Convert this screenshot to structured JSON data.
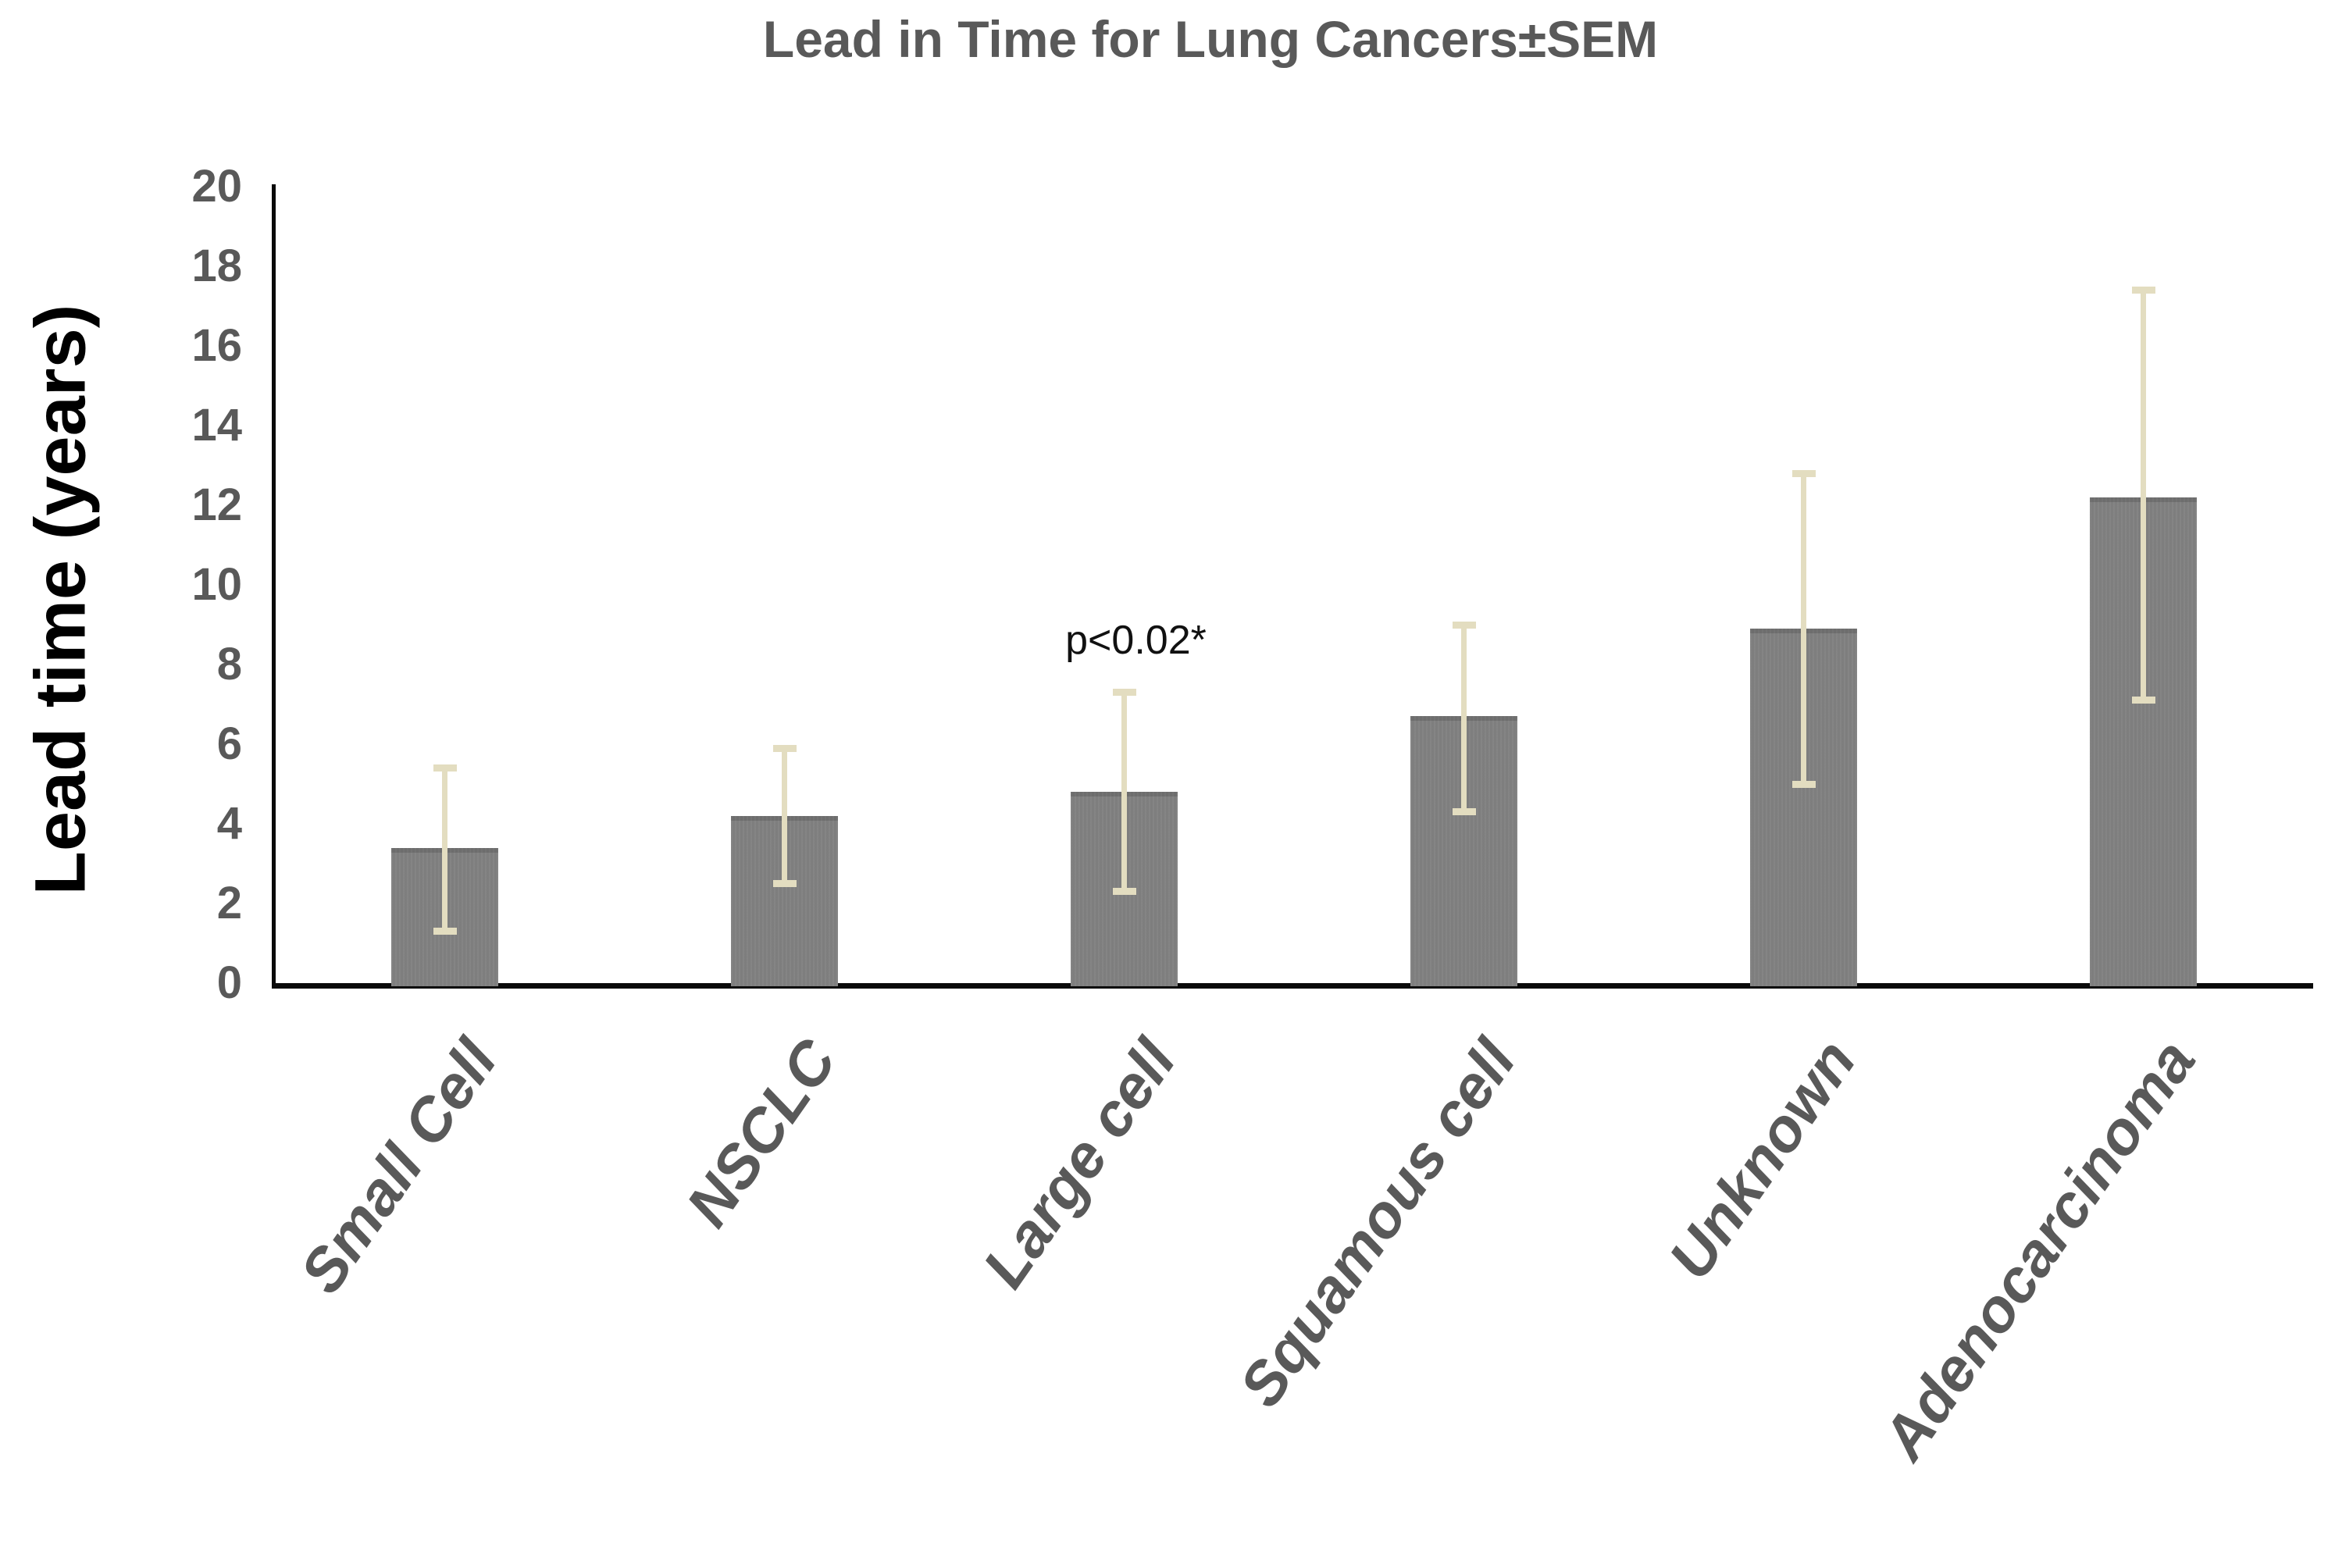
{
  "chart_data": {
    "type": "bar",
    "title": "Lead in Time for Lung Cancers±SEM",
    "ylabel": "Lead time (years)",
    "xlabel": "",
    "ylim": [
      0,
      20
    ],
    "ytick_step": 2,
    "yticks": [
      0,
      2,
      4,
      6,
      8,
      10,
      12,
      14,
      16,
      18,
      20
    ],
    "grid": false,
    "legend": false,
    "categories": [
      "Small Cell",
      "NSCLC",
      "Large cell",
      "Squamous cell",
      "Unknown",
      "Adenocarcinoma"
    ],
    "series": [
      {
        "name": "Lead time (years)",
        "values": [
          3.4,
          4.2,
          4.8,
          6.7,
          8.9,
          12.2
        ]
      }
    ],
    "error_bars": {
      "type": "SEM",
      "low": [
        1.3,
        2.5,
        2.3,
        4.3,
        5.0,
        7.1
      ],
      "high": [
        5.4,
        5.9,
        7.3,
        9.0,
        12.8,
        17.4
      ]
    },
    "annotation": {
      "text": "p<0.02*",
      "category": "Large cell",
      "y": 8.6
    },
    "colors": {
      "bar": "#7e7e7e",
      "bar_top_edge": "#6a6a6a",
      "error_bar": "#e3ddc0",
      "axis": "#0a0a0a",
      "tick_label": "#595959",
      "title": "#595959",
      "category_label": "#595959",
      "annotation": "#111111",
      "ylabel": "#000000",
      "background": "#ffffff"
    }
  }
}
